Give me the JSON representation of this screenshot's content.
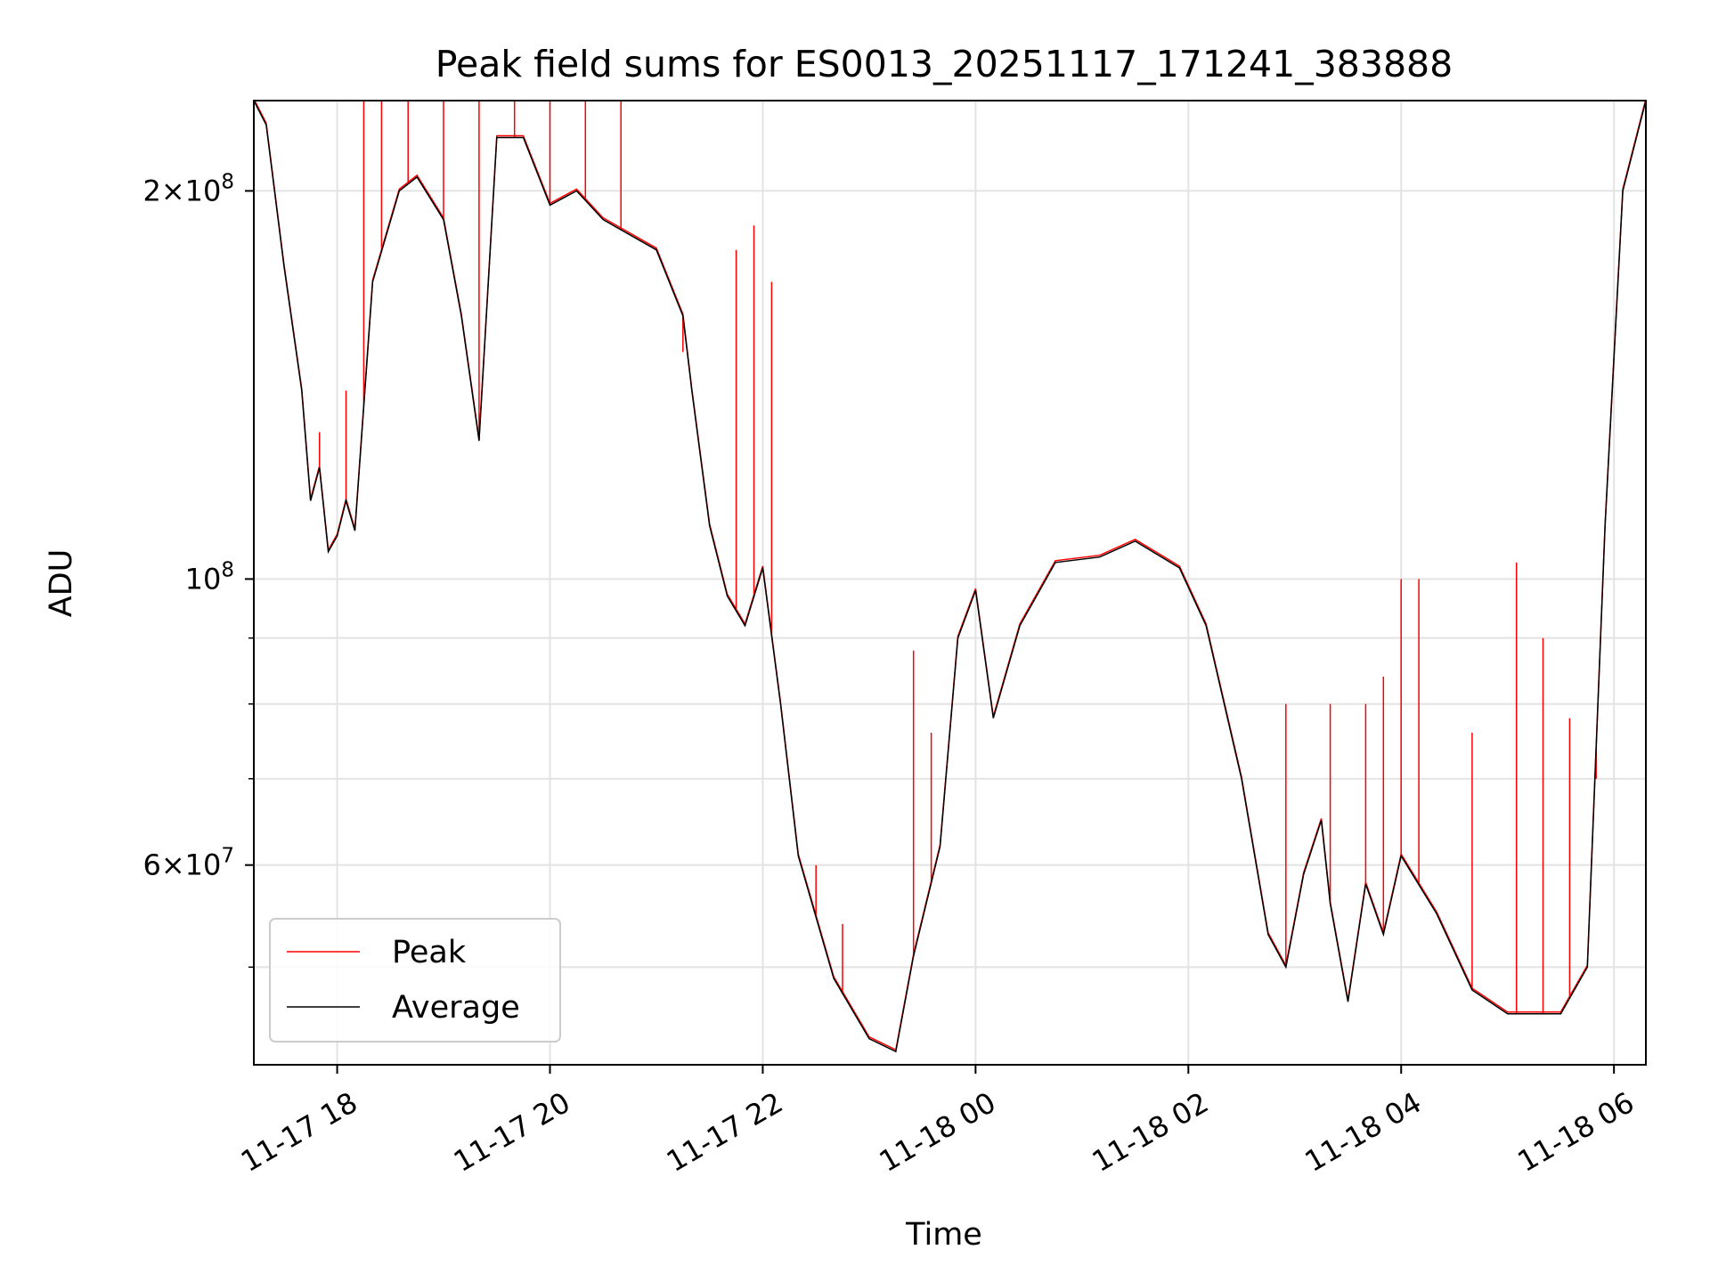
{
  "chart_data": {
    "type": "line",
    "title": "Peak field sums for ES0013_20251117_171241_383888",
    "xlabel": "Time",
    "ylabel": "ADU",
    "y_scale": "log",
    "grid": true,
    "legend_position": "lower-left",
    "x_range": [
      "2025-11-17 17:13",
      "2025-11-18 06:18"
    ],
    "ylim": [
      42000000,
      235000000
    ],
    "x_ticks": [
      {
        "value": "2025-11-17 18:00",
        "label": "11-17 18"
      },
      {
        "value": "2025-11-17 20:00",
        "label": "11-17 20"
      },
      {
        "value": "2025-11-17 22:00",
        "label": "11-17 22"
      },
      {
        "value": "2025-11-18 00:00",
        "label": "11-18 00"
      },
      {
        "value": "2025-11-18 02:00",
        "label": "11-18 02"
      },
      {
        "value": "2025-11-18 04:00",
        "label": "11-18 04"
      },
      {
        "value": "2025-11-18 06:00",
        "label": "11-18 06"
      }
    ],
    "y_ticks": [
      {
        "value": 200000000,
        "label": "2×10",
        "exp": "8"
      },
      {
        "value": 100000000,
        "label": "10",
        "exp": "8"
      },
      {
        "value": 60000000,
        "label": "6×10",
        "exp": "7"
      }
    ],
    "y_minor_ticks": [
      50000000,
      70000000,
      80000000,
      90000000
    ],
    "series": [
      {
        "name": "Average",
        "color": "#000000",
        "points": [
          [
            "2025-11-17 17:13",
            235000000
          ],
          [
            "2025-11-17 17:20",
            225000000
          ],
          [
            "2025-11-17 17:30",
            175000000
          ],
          [
            "2025-11-17 17:40",
            140000000
          ],
          [
            "2025-11-17 17:45",
            115000000
          ],
          [
            "2025-11-17 17:50",
            122000000
          ],
          [
            "2025-11-17 17:55",
            105000000
          ],
          [
            "2025-11-17 18:00",
            108000000
          ],
          [
            "2025-11-17 18:05",
            115000000
          ],
          [
            "2025-11-17 18:10",
            109000000
          ],
          [
            "2025-11-17 18:20",
            170000000
          ],
          [
            "2025-11-17 18:35",
            200000000
          ],
          [
            "2025-11-17 18:45",
            205000000
          ],
          [
            "2025-11-17 19:00",
            190000000
          ],
          [
            "2025-11-17 19:10",
            160000000
          ],
          [
            "2025-11-17 19:20",
            128000000
          ],
          [
            "2025-11-17 19:30",
            220000000
          ],
          [
            "2025-11-17 19:45",
            220000000
          ],
          [
            "2025-11-17 20:00",
            195000000
          ],
          [
            "2025-11-17 20:15",
            200000000
          ],
          [
            "2025-11-17 20:30",
            190000000
          ],
          [
            "2025-11-17 21:00",
            180000000
          ],
          [
            "2025-11-17 21:15",
            160000000
          ],
          [
            "2025-11-17 21:20",
            140000000
          ],
          [
            "2025-11-17 21:30",
            110000000
          ],
          [
            "2025-11-17 21:40",
            97000000
          ],
          [
            "2025-11-17 21:50",
            92000000
          ],
          [
            "2025-11-17 22:00",
            102000000
          ],
          [
            "2025-11-17 22:10",
            80000000
          ],
          [
            "2025-11-17 22:20",
            61000000
          ],
          [
            "2025-11-17 22:40",
            49000000
          ],
          [
            "2025-11-17 23:00",
            44000000
          ],
          [
            "2025-11-17 23:15",
            43000000
          ],
          [
            "2025-11-17 23:25",
            51000000
          ],
          [
            "2025-11-17 23:40",
            62000000
          ],
          [
            "2025-11-17 23:50",
            90000000
          ],
          [
            "2025-11-18 00:00",
            98000000
          ],
          [
            "2025-11-18 00:10",
            78000000
          ],
          [
            "2025-11-18 00:25",
            92000000
          ],
          [
            "2025-11-18 00:45",
            103000000
          ],
          [
            "2025-11-18 01:10",
            104000000
          ],
          [
            "2025-11-18 01:30",
            107000000
          ],
          [
            "2025-11-18 01:55",
            102000000
          ],
          [
            "2025-11-18 02:10",
            92000000
          ],
          [
            "2025-11-18 02:30",
            70000000
          ],
          [
            "2025-11-18 02:45",
            53000000
          ],
          [
            "2025-11-18 02:55",
            50000000
          ],
          [
            "2025-11-18 03:05",
            59000000
          ],
          [
            "2025-11-18 03:15",
            65000000
          ],
          [
            "2025-11-18 03:20",
            56000000
          ],
          [
            "2025-11-18 03:30",
            47000000
          ],
          [
            "2025-11-18 03:40",
            58000000
          ],
          [
            "2025-11-18 03:50",
            53000000
          ],
          [
            "2025-11-18 04:00",
            61000000
          ],
          [
            "2025-11-18 04:20",
            55000000
          ],
          [
            "2025-11-18 04:40",
            48000000
          ],
          [
            "2025-11-18 05:00",
            46000000
          ],
          [
            "2025-11-18 05:30",
            46000000
          ],
          [
            "2025-11-18 05:45",
            50000000
          ],
          [
            "2025-11-18 05:55",
            110000000
          ],
          [
            "2025-11-18 06:05",
            200000000
          ],
          [
            "2025-11-18 06:18",
            235000000
          ]
        ]
      },
      {
        "name": "Peak",
        "color": "#ff0000",
        "spikes": [
          [
            "2025-11-17 17:50",
            130000000
          ],
          [
            "2025-11-17 18:05",
            140000000
          ],
          [
            "2025-11-17 18:15",
            235000000
          ],
          [
            "2025-11-17 18:25",
            235000000
          ],
          [
            "2025-11-17 18:40",
            235000000
          ],
          [
            "2025-11-17 19:00",
            235000000
          ],
          [
            "2025-11-17 19:20",
            235000000
          ],
          [
            "2025-11-17 19:40",
            235000000
          ],
          [
            "2025-11-17 20:00",
            235000000
          ],
          [
            "2025-11-17 20:20",
            235000000
          ],
          [
            "2025-11-17 20:40",
            235000000
          ],
          [
            "2025-11-17 21:15",
            150000000
          ],
          [
            "2025-11-17 21:45",
            180000000
          ],
          [
            "2025-11-17 21:55",
            188000000
          ],
          [
            "2025-11-17 22:05",
            170000000
          ],
          [
            "2025-11-17 22:30",
            60000000
          ],
          [
            "2025-11-17 22:45",
            54000000
          ],
          [
            "2025-11-17 23:25",
            88000000
          ],
          [
            "2025-11-17 23:35",
            76000000
          ],
          [
            "2025-11-18 02:55",
            80000000
          ],
          [
            "2025-11-18 03:20",
            80000000
          ],
          [
            "2025-11-18 03:40",
            80000000
          ],
          [
            "2025-11-18 03:50",
            84000000
          ],
          [
            "2025-11-18 04:00",
            100000000
          ],
          [
            "2025-11-18 04:10",
            100000000
          ],
          [
            "2025-11-18 04:40",
            76000000
          ],
          [
            "2025-11-18 05:05",
            103000000
          ],
          [
            "2025-11-18 05:20",
            90000000
          ],
          [
            "2025-11-18 05:35",
            78000000
          ],
          [
            "2025-11-18 05:50",
            70000000
          ]
        ]
      }
    ]
  }
}
